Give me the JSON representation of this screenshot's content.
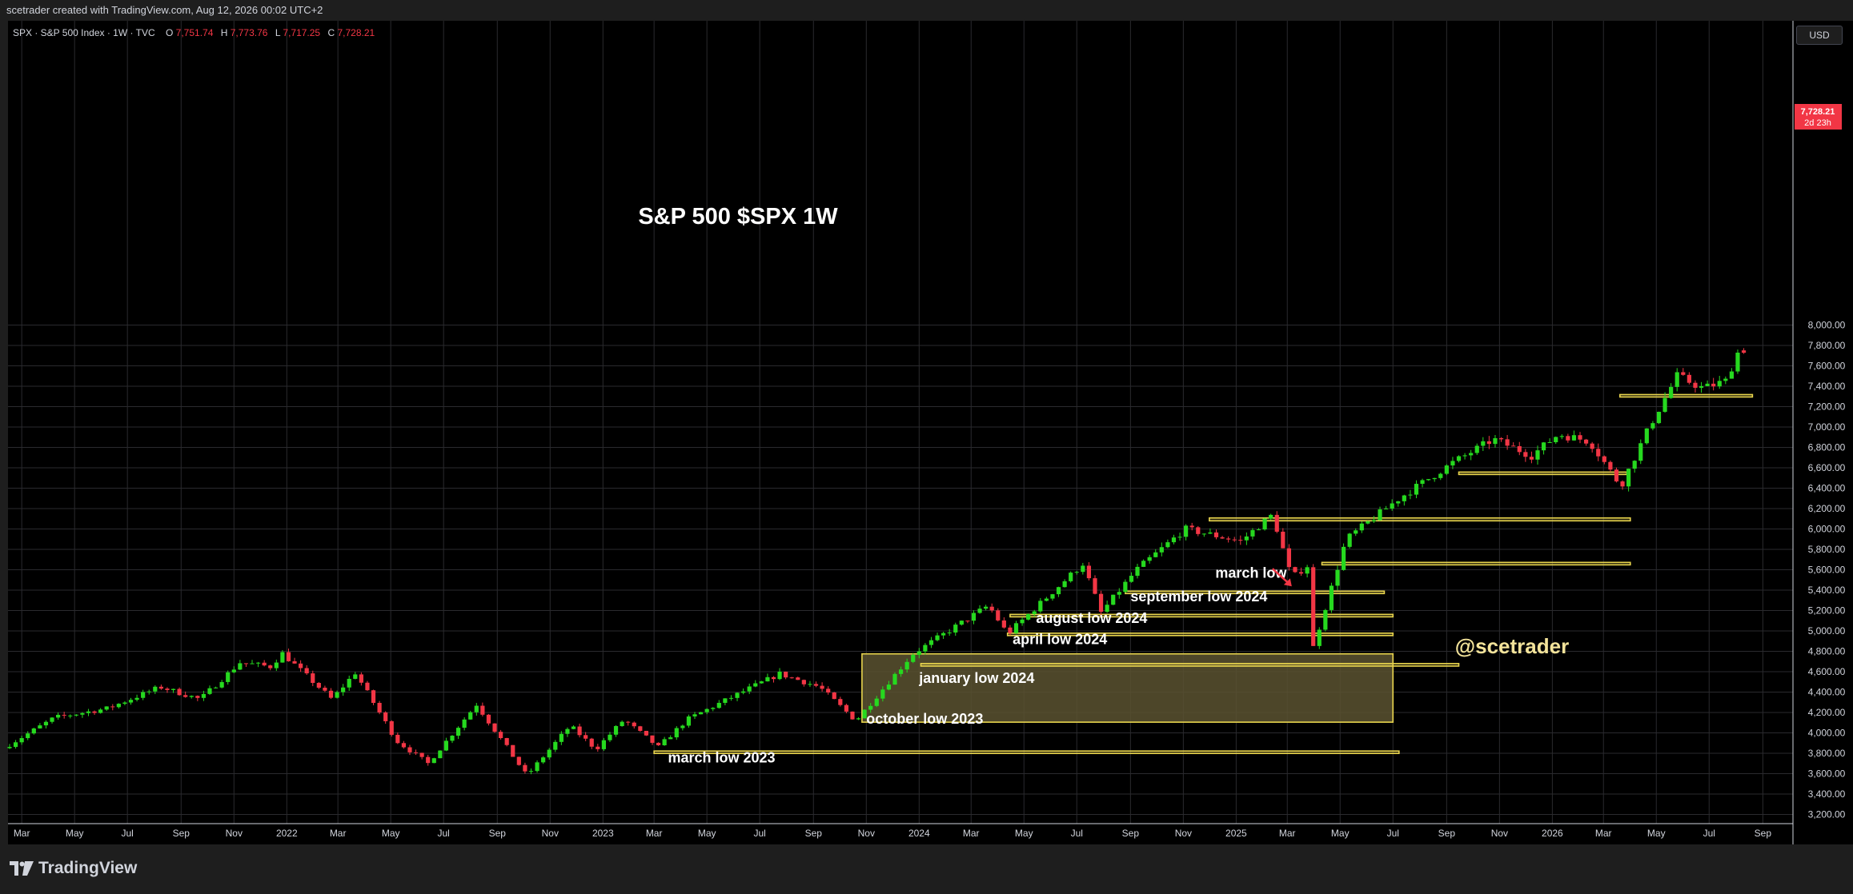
{
  "header": {
    "attribution": "scetrader created with TradingView.com, Aug 12, 2026 00:02 UTC+2"
  },
  "legend": {
    "symbol": "SPX · S&P 500 Index · 1W · TVC",
    "open_label": "O",
    "open": "7,751.74",
    "high_label": "H",
    "high": "7,773.76",
    "low_label": "L",
    "low": "7,717.25",
    "close_label": "C",
    "close": "7,728.21"
  },
  "currency_button": "USD",
  "price_tag": {
    "price": "7,728.21",
    "countdown": "2d 23h"
  },
  "watermark": "@scetrader",
  "footer": {
    "brand": "TradingView"
  },
  "colors": {
    "background": "#000000",
    "grid": "#2a2a2e",
    "up": "#26d91f",
    "down": "#f23645",
    "zone": "#e8d44d",
    "zone_fill": "#5a5230",
    "watermark": "#f3e39a",
    "price_tag": "#f23645"
  },
  "chart_data": {
    "type": "candlestick",
    "title": "S&P 500 $SPX 1W",
    "timeframe": "1W",
    "x_range": [
      "2021-02-15",
      "2026-09-21"
    ],
    "y_range": [
      3100,
      8150
    ],
    "yticks": [
      "8,000.00",
      "7,800.00",
      "7,600.00",
      "7,400.00",
      "7,200.00",
      "7,000.00",
      "6,800.00",
      "6,600.00",
      "6,400.00",
      "6,200.00",
      "6,000.00",
      "5,800.00",
      "5,600.00",
      "5,400.00",
      "5,200.00",
      "5,000.00",
      "4,800.00",
      "4,600.00",
      "4,400.00",
      "4,200.00",
      "4,000.00",
      "3,800.00",
      "3,600.00",
      "3,400.00",
      "3,200.00"
    ],
    "xticks": [
      {
        "label": "Mar",
        "date": "2021-03-01"
      },
      {
        "label": "May",
        "date": "2021-05-01"
      },
      {
        "label": "Jul",
        "date": "2021-07-01"
      },
      {
        "label": "Sep",
        "date": "2021-09-01"
      },
      {
        "label": "Nov",
        "date": "2021-11-01"
      },
      {
        "label": "2022",
        "date": "2022-01-01"
      },
      {
        "label": "Mar",
        "date": "2022-03-01"
      },
      {
        "label": "May",
        "date": "2022-05-01"
      },
      {
        "label": "Jul",
        "date": "2022-07-01"
      },
      {
        "label": "Sep",
        "date": "2022-09-01"
      },
      {
        "label": "Nov",
        "date": "2022-11-01"
      },
      {
        "label": "2023",
        "date": "2023-01-01"
      },
      {
        "label": "Mar",
        "date": "2023-03-01"
      },
      {
        "label": "May",
        "date": "2023-05-01"
      },
      {
        "label": "Jul",
        "date": "2023-07-01"
      },
      {
        "label": "Sep",
        "date": "2023-09-01"
      },
      {
        "label": "Nov",
        "date": "2023-11-01"
      },
      {
        "label": "2024",
        "date": "2024-01-01"
      },
      {
        "label": "Mar",
        "date": "2024-03-01"
      },
      {
        "label": "May",
        "date": "2024-05-01"
      },
      {
        "label": "Jul",
        "date": "2024-07-01"
      },
      {
        "label": "Sep",
        "date": "2024-09-01"
      },
      {
        "label": "Nov",
        "date": "2024-11-01"
      },
      {
        "label": "2025",
        "date": "2025-01-01"
      },
      {
        "label": "Mar",
        "date": "2025-03-01"
      },
      {
        "label": "May",
        "date": "2025-05-01"
      },
      {
        "label": "Jul",
        "date": "2025-07-01"
      },
      {
        "label": "Sep",
        "date": "2025-09-01"
      },
      {
        "label": "Nov",
        "date": "2025-11-01"
      },
      {
        "label": "2026",
        "date": "2026-01-01"
      },
      {
        "label": "Mar",
        "date": "2026-03-01"
      },
      {
        "label": "May",
        "date": "2026-05-01"
      },
      {
        "label": "Jul",
        "date": "2026-07-01"
      },
      {
        "label": "Sep",
        "date": "2026-09-01"
      }
    ],
    "price_path": [
      [
        "2021-02-15",
        3850
      ],
      [
        "2021-04-15",
        4150
      ],
      [
        "2021-06-15",
        4240
      ],
      [
        "2021-08-15",
        4450
      ],
      [
        "2021-09-30",
        4330
      ],
      [
        "2021-11-15",
        4690
      ],
      [
        "2021-12-20",
        4650
      ],
      [
        "2022-01-03",
        4780
      ],
      [
        "2022-03-01",
        4330
      ],
      [
        "2022-03-28",
        4590
      ],
      [
        "2022-05-15",
        3920
      ],
      [
        "2022-06-20",
        3700
      ],
      [
        "2022-08-15",
        4280
      ],
      [
        "2022-10-12",
        3580
      ],
      [
        "2022-12-01",
        4070
      ],
      [
        "2022-12-31",
        3840
      ],
      [
        "2023-02-01",
        4130
      ],
      [
        "2023-03-13",
        3860
      ],
      [
        "2023-04-15",
        4130
      ],
      [
        "2023-06-15",
        4390
      ],
      [
        "2023-07-31",
        4580
      ],
      [
        "2023-09-15",
        4450
      ],
      [
        "2023-10-27",
        4120
      ],
      [
        "2023-12-31",
        4770
      ],
      [
        "2024-03-28",
        5250
      ],
      [
        "2024-04-19",
        4970
      ],
      [
        "2024-07-15",
        5660
      ],
      [
        "2024-08-05",
        5180
      ],
      [
        "2024-09-15",
        5600
      ],
      [
        "2024-11-10",
        6000
      ],
      [
        "2025-01-13",
        5880
      ],
      [
        "2025-02-19",
        6140
      ],
      [
        "2025-03-13",
        5520
      ],
      [
        "2025-03-31",
        5640
      ],
      [
        "2025-04-07",
        4840
      ],
      [
        "2025-05-15",
        5900
      ],
      [
        "2025-07-15",
        6300
      ],
      [
        "2025-09-15",
        6650
      ],
      [
        "2025-11-01",
        6880
      ],
      [
        "2025-12-15",
        6720
      ],
      [
        "2026-01-15",
        6930
      ],
      [
        "2026-02-20",
        6860
      ],
      [
        "2026-03-28",
        6420
      ],
      [
        "2026-05-01",
        7020
      ],
      [
        "2026-06-01",
        7500
      ],
      [
        "2026-07-01",
        7380
      ],
      [
        "2026-07-27",
        7450
      ],
      [
        "2026-08-10",
        7728
      ]
    ],
    "last_candle": {
      "date": "2026-08-10",
      "open": 7751.74,
      "high": 7773.76,
      "low": 7717.25,
      "close": 7728.21
    },
    "annotations": [
      {
        "text": "march low 2023",
        "date": "2023-03-17",
        "price": 3710
      },
      {
        "text": "october low 2023",
        "date": "2023-11-01",
        "price": 4090
      },
      {
        "text": "january low 2024",
        "date": "2024-01-01",
        "price": 4490
      },
      {
        "text": "april low 2024",
        "date": "2024-04-18",
        "price": 4870
      },
      {
        "text": "august low 2024",
        "date": "2024-05-15",
        "price": 5080
      },
      {
        "text": "september low 2024",
        "date": "2024-09-01",
        "price": 5290
      },
      {
        "text": "march low",
        "date": "2024-12-08",
        "price": 5520
      }
    ],
    "zones": [
      {
        "name": "march-low-2023",
        "from": "2023-03-01",
        "to": "2025-07-08",
        "top": 3822,
        "bottom": 3800
      },
      {
        "name": "october-low-2023",
        "from": "2023-10-27",
        "to": "2025-07-01",
        "top": 4775,
        "bottom": 4105
      },
      {
        "name": "january-low-2024",
        "from": "2024-01-03",
        "to": "2025-09-15",
        "top": 4680,
        "bottom": 4655
      },
      {
        "name": "april-low-2024",
        "from": "2024-04-12",
        "to": "2025-07-01",
        "top": 4978,
        "bottom": 4955
      },
      {
        "name": "august-low-2024",
        "from": "2024-04-15",
        "to": "2025-07-01",
        "top": 5162,
        "bottom": 5138
      },
      {
        "name": "september-low-2024",
        "from": "2024-08-26",
        "to": "2025-06-21",
        "top": 5390,
        "bottom": 5368
      },
      {
        "name": "march-low",
        "from": "2025-04-10",
        "to": "2026-04-01",
        "top": 5672,
        "bottom": 5648
      },
      {
        "name": "top-zone-2024",
        "from": "2024-12-01",
        "to": "2026-04-01",
        "top": 6108,
        "bottom": 6080
      },
      {
        "name": "zone-6550",
        "from": "2025-09-15",
        "to": "2026-03-28",
        "top": 6558,
        "bottom": 6540
      },
      {
        "name": "zone-7300",
        "from": "2026-03-20",
        "to": "2026-08-20",
        "top": 7318,
        "bottom": 7298
      }
    ]
  }
}
